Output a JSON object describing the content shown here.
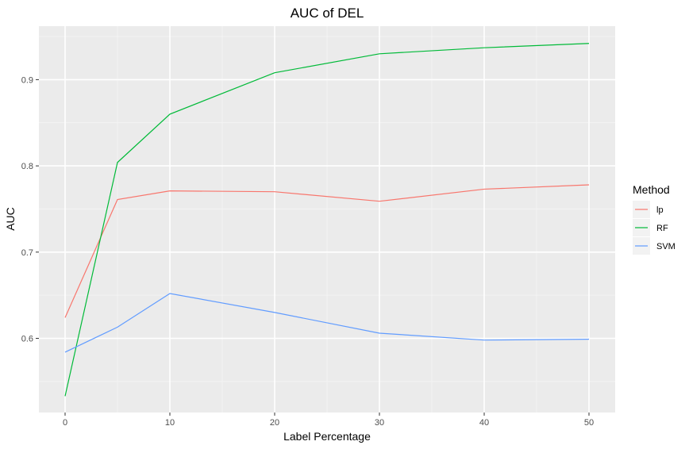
{
  "chart_data": {
    "type": "line",
    "title": "AUC of DEL",
    "xlabel": "Label Percentage",
    "ylabel": "AUC",
    "x": [
      0,
      5,
      10,
      20,
      30,
      40,
      50
    ],
    "xlim": [
      -2.5,
      52.5
    ],
    "ylim": [
      0.514,
      0.962
    ],
    "xticks": [
      0,
      10,
      20,
      30,
      40,
      50
    ],
    "yticks": [
      0.6,
      0.7,
      0.8,
      0.9
    ],
    "xtick_labels": [
      "0",
      "10",
      "20",
      "30",
      "40",
      "50"
    ],
    "ytick_labels": [
      "0.6",
      "0.7",
      "0.8",
      "0.9"
    ],
    "x_minor": [
      5,
      15,
      25,
      35,
      45
    ],
    "y_minor": [
      0.55,
      0.65,
      0.75,
      0.85,
      0.95
    ],
    "grid": true,
    "legend_title": "Method",
    "legend_position": "right",
    "series": [
      {
        "name": "lp",
        "color": "#F8766D",
        "values": [
          0.624,
          0.761,
          0.771,
          0.77,
          0.759,
          0.773,
          0.778
        ]
      },
      {
        "name": "RF",
        "color": "#00BA38",
        "values": [
          0.533,
          0.804,
          0.86,
          0.908,
          0.93,
          0.937,
          0.942
        ]
      },
      {
        "name": "SVM",
        "color": "#619CFF",
        "values": [
          0.584,
          0.613,
          0.652,
          0.63,
          0.606,
          0.598,
          0.599
        ]
      }
    ]
  }
}
